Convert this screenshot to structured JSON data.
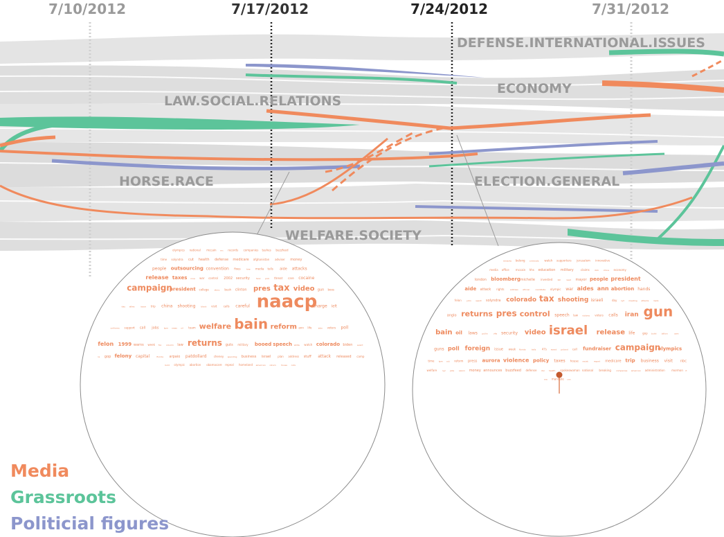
{
  "dates": [
    {
      "label": "7/10/2012",
      "color": "#9a9a9a",
      "style": "dotted-light"
    },
    {
      "label": "7/17/2012",
      "color": "#333333",
      "style": "dotted-dark"
    },
    {
      "label": "7/24/2012",
      "color": "#222222",
      "style": "dotted-dark"
    },
    {
      "label": "7/31/2012",
      "color": "#9a9a9a",
      "style": "dotted-light"
    }
  ],
  "topics": {
    "defense": "DEFENSE.INTERNATIONAL.ISSUES",
    "economy": "ECONOMY",
    "law": "LAW.SOCIAL.RELATIONS",
    "horse": "HORSE.RACE",
    "election": "ELECTION.GENERAL",
    "welfare": "WELFARE.SOCIETY"
  },
  "legend": [
    {
      "label": "Media",
      "color": "#f08a5d"
    },
    {
      "label": "Grassroots",
      "color": "#5cc49a"
    },
    {
      "label": "Politicial figures",
      "color": "#8c96cc"
    }
  ],
  "colors": {
    "media": "#f08a5d",
    "grassroots": "#5cc49a",
    "political": "#8c96cc",
    "band": "#e2e2e2"
  },
  "left_cloud": [
    {
      "t": "olympics",
      "s": 4
    },
    {
      "t": "national",
      "s": 4
    },
    {
      "t": "mccain",
      "s": 4
    },
    {
      "t": "rnc",
      "s": 3
    },
    {
      "t": "records",
      "s": 4
    },
    {
      "t": "companies",
      "s": 4
    },
    {
      "t": "tashes",
      "s": 4
    },
    {
      "t": "buzzfeed",
      "s": 4
    },
    {
      "t": "time",
      "s": 4
    },
    {
      "t": "solyndra",
      "s": 4
    },
    {
      "t": "cut",
      "s": 5
    },
    {
      "t": "health",
      "s": 5
    },
    {
      "t": "defense",
      "s": 5
    },
    {
      "t": "medicare",
      "s": 5
    },
    {
      "t": "afghanistan",
      "s": 4
    },
    {
      "t": "adviser",
      "s": 4
    },
    {
      "t": "money",
      "s": 5
    },
    {
      "t": "people",
      "s": 6
    },
    {
      "t": "outsourcing",
      "s": 7
    },
    {
      "t": "convention",
      "s": 6
    },
    {
      "t": "fixes",
      "s": 4
    },
    {
      "t": "hire",
      "s": 3
    },
    {
      "t": "media",
      "s": 4
    },
    {
      "t": "tells",
      "s": 4
    },
    {
      "t": "aide",
      "s": 5
    },
    {
      "t": "attacks",
      "s": 6
    },
    {
      "t": "release",
      "s": 8
    },
    {
      "t": "taxes",
      "s": 7
    },
    {
      "t": "rove",
      "s": 3
    },
    {
      "t": "war",
      "s": 4
    },
    {
      "t": "control",
      "s": 4
    },
    {
      "t": "2002",
      "s": 5
    },
    {
      "t": "security",
      "s": 5
    },
    {
      "t": "fanz",
      "s": 3
    },
    {
      "t": "pick",
      "s": 3
    },
    {
      "t": "threat",
      "s": 4
    },
    {
      "t": "care",
      "s": 4
    },
    {
      "t": "cocaine",
      "s": 6
    },
    {
      "t": "campaign",
      "s": 12
    },
    {
      "t": "president",
      "s": 7
    },
    {
      "t": "college",
      "s": 4
    },
    {
      "t": "story",
      "s": 3
    },
    {
      "t": "bush",
      "s": 4
    },
    {
      "t": "clinton",
      "s": 5
    },
    {
      "t": "pres",
      "s": 10
    },
    {
      "t": "tax",
      "s": 13
    },
    {
      "t": "video",
      "s": 10
    },
    {
      "t": "gun",
      "s": 5
    },
    {
      "t": "boos",
      "s": 4
    },
    {
      "t": "day",
      "s": 3
    },
    {
      "t": "allies",
      "s": 3
    },
    {
      "t": "issue",
      "s": 3
    },
    {
      "t": "trip",
      "s": 4
    },
    {
      "t": "china",
      "s": 6
    },
    {
      "t": "shooting",
      "s": 6
    },
    {
      "t": "black",
      "s": 3
    },
    {
      "t": "visit",
      "s": 4
    },
    {
      "t": "calls",
      "s": 4
    },
    {
      "t": "careful",
      "s": 6
    },
    {
      "t": "naacp",
      "s": 26
    },
    {
      "t": "charge",
      "s": 6
    },
    {
      "t": "left",
      "s": 5
    },
    {
      "t": "uniforms",
      "s": 3
    },
    {
      "t": "support",
      "s": 4
    },
    {
      "t": "call",
      "s": 5
    },
    {
      "t": "jobs",
      "s": 5
    },
    {
      "t": "tpm",
      "s": 3
    },
    {
      "t": "news",
      "s": 3
    },
    {
      "t": "oil",
      "s": 3
    },
    {
      "t": "team",
      "s": 4
    },
    {
      "t": "welfare",
      "s": 11
    },
    {
      "t": "bain",
      "s": 20
    },
    {
      "t": "reform",
      "s": 10
    },
    {
      "t": "ann",
      "s": 4
    },
    {
      "t": "life",
      "s": 4
    },
    {
      "t": "jobs",
      "s": 3
    },
    {
      "t": "voters",
      "s": 4
    },
    {
      "t": "poll",
      "s": 6
    },
    {
      "t": "felon",
      "s": 8
    },
    {
      "t": "1999",
      "s": 7
    },
    {
      "t": "warns",
      "s": 5
    },
    {
      "t": "week",
      "s": 4
    },
    {
      "t": "fox",
      "s": 3
    },
    {
      "t": "column",
      "s": 3
    },
    {
      "t": "law",
      "s": 5
    },
    {
      "t": "returns",
      "s": 12
    },
    {
      "t": "guts",
      "s": 5
    },
    {
      "t": "military",
      "s": 4
    },
    {
      "t": "booed",
      "s": 7
    },
    {
      "t": "speech",
      "s": 7
    },
    {
      "t": "white",
      "s": 3
    },
    {
      "t": "watch",
      "s": 4
    },
    {
      "t": "colorado",
      "s": 7
    },
    {
      "t": "biden",
      "s": 5
    },
    {
      "t": "event",
      "s": 3
    },
    {
      "t": "la",
      "s": 3
    },
    {
      "t": "gop",
      "s": 5
    },
    {
      "t": "felony",
      "s": 7
    },
    {
      "t": "capital",
      "s": 6
    },
    {
      "t": "florida",
      "s": 3
    },
    {
      "t": "arpaio",
      "s": 5
    },
    {
      "t": "patdollard",
      "s": 6
    },
    {
      "t": "cheney",
      "s": 4
    },
    {
      "t": "spending",
      "s": 3
    },
    {
      "t": "business",
      "s": 5
    },
    {
      "t": "israel",
      "s": 5
    },
    {
      "t": "plan",
      "s": 4
    },
    {
      "t": "address",
      "s": 4
    },
    {
      "t": "stuff",
      "s": 5
    },
    {
      "t": "attack",
      "s": 6
    },
    {
      "t": "released",
      "s": 5
    },
    {
      "t": "camp",
      "s": 4
    },
    {
      "t": "bold",
      "s": 3
    },
    {
      "t": "olympic",
      "s": 4
    },
    {
      "t": "abortion",
      "s": 4
    },
    {
      "t": "obamacare",
      "s": 4
    },
    {
      "t": "repeal",
      "s": 4
    },
    {
      "t": "homeland",
      "s": 4
    },
    {
      "t": "american",
      "s": 3
    },
    {
      "t": "return",
      "s": 3
    },
    {
      "t": "house",
      "s": 3
    },
    {
      "t": "cuts",
      "s": 3
    }
  ],
  "right_cloud": [
    {
      "t": "remarks",
      "s": 3
    },
    {
      "t": "belong",
      "s": 4
    },
    {
      "t": "criminals",
      "s": 3
    },
    {
      "t": "watch",
      "s": 4
    },
    {
      "t": "supporters",
      "s": 4
    },
    {
      "t": "jerusalem",
      "s": 4
    },
    {
      "t": "innovative",
      "s": 4
    },
    {
      "t": "media",
      "s": 4
    },
    {
      "t": "office",
      "s": 4
    },
    {
      "t": "mccain",
      "s": 4
    },
    {
      "t": "hhs",
      "s": 4
    },
    {
      "t": "education",
      "s": 5
    },
    {
      "t": "military",
      "s": 5
    },
    {
      "t": "claims",
      "s": 4
    },
    {
      "t": "dick",
      "s": 3
    },
    {
      "t": "china",
      "s": 3
    },
    {
      "t": "economy",
      "s": 4
    },
    {
      "t": "london",
      "s": 5
    },
    {
      "t": "bloomberg",
      "s": 7
    },
    {
      "t": "michelle",
      "s": 5
    },
    {
      "t": "invested",
      "s": 4
    },
    {
      "t": "bill",
      "s": 3
    },
    {
      "t": "lead",
      "s": 3
    },
    {
      "t": "mayor",
      "s": 5
    },
    {
      "t": "people",
      "s": 7
    },
    {
      "t": "president",
      "s": 8
    },
    {
      "t": "aide",
      "s": 7
    },
    {
      "t": "attack",
      "s": 5
    },
    {
      "t": "rights",
      "s": 4
    },
    {
      "t": "address",
      "s": 3
    },
    {
      "t": "african",
      "s": 3
    },
    {
      "t": "candidate",
      "s": 3
    },
    {
      "t": "olympic",
      "s": 4
    },
    {
      "t": "war",
      "s": 6
    },
    {
      "t": "aides",
      "s": 8
    },
    {
      "t": "ann",
      "s": 8
    },
    {
      "t": "abortion",
      "s": 7
    },
    {
      "t": "hands",
      "s": 6
    },
    {
      "t": "felon",
      "s": 4
    },
    {
      "t": "john",
      "s": 3
    },
    {
      "t": "spent",
      "s": 3
    },
    {
      "t": "solyndra",
      "s": 5
    },
    {
      "t": "colorado",
      "s": 9
    },
    {
      "t": "tax",
      "s": 12
    },
    {
      "t": "shooting",
      "s": 9
    },
    {
      "t": "israeli",
      "s": 6
    },
    {
      "t": "day",
      "s": 4
    },
    {
      "t": "nyt",
      "s": 3
    },
    {
      "t": "meeting",
      "s": 3
    },
    {
      "t": "attacks",
      "s": 3
    },
    {
      "t": "bails",
      "s": 3
    },
    {
      "t": "anglo",
      "s": 5
    },
    {
      "t": "returns",
      "s": 11
    },
    {
      "t": "pres",
      "s": 12
    },
    {
      "t": "control",
      "s": 11
    },
    {
      "t": "speech",
      "s": 6
    },
    {
      "t": "law",
      "s": 4
    },
    {
      "t": "victims",
      "s": 3
    },
    {
      "t": "voters",
      "s": 4
    },
    {
      "t": "calls",
      "s": 6
    },
    {
      "t": "iran",
      "s": 9
    },
    {
      "t": "gun",
      "s": 20
    },
    {
      "t": "bain",
      "s": 10
    },
    {
      "t": "oil",
      "s": 7
    },
    {
      "t": "laws",
      "s": 6
    },
    {
      "t": "pullin",
      "s": 3
    },
    {
      "t": "vfw",
      "s": 3
    },
    {
      "t": "security",
      "s": 6
    },
    {
      "t": "video",
      "s": 10
    },
    {
      "t": "israel",
      "s": 18
    },
    {
      "t": "release",
      "s": 10
    },
    {
      "t": "life",
      "s": 6
    },
    {
      "t": "gop",
      "s": 4
    },
    {
      "t": "build",
      "s": 3
    },
    {
      "t": "billion",
      "s": 3
    },
    {
      "t": "care",
      "s": 3
    },
    {
      "t": "guns",
      "s": 6
    },
    {
      "t": "poll",
      "s": 8
    },
    {
      "t": "foreign",
      "s": 9
    },
    {
      "t": "issue",
      "s": 5
    },
    {
      "t": "week",
      "s": 4
    },
    {
      "t": "florida",
      "s": 3
    },
    {
      "t": "tells",
      "s": 3
    },
    {
      "t": "47s",
      "s": 4
    },
    {
      "t": "event",
      "s": 3
    },
    {
      "t": "poland",
      "s": 3
    },
    {
      "t": "call",
      "s": 4
    },
    {
      "t": "fundraiser",
      "s": 7
    },
    {
      "t": "campaign",
      "s": 12
    },
    {
      "t": "olympics",
      "s": 7
    },
    {
      "t": "time",
      "s": 4
    },
    {
      "t": "tpm",
      "s": 3
    },
    {
      "t": "cut",
      "s": 3
    },
    {
      "t": "reform",
      "s": 4
    },
    {
      "t": "press",
      "s": 5
    },
    {
      "t": "aurora",
      "s": 7
    },
    {
      "t": "violence",
      "s": 8
    },
    {
      "t": "policy",
      "s": 7
    },
    {
      "t": "taxes",
      "s": 6
    },
    {
      "t": "house",
      "s": 4
    },
    {
      "t": "racist",
      "s": 3
    },
    {
      "t": "report",
      "s": 3
    },
    {
      "t": "medicare",
      "s": 5
    },
    {
      "t": "trip",
      "s": 7
    },
    {
      "t": "business",
      "s": 6
    },
    {
      "t": "visit",
      "s": 6
    },
    {
      "t": "nbc",
      "s": 5
    },
    {
      "t": "welfare",
      "s": 4
    },
    {
      "t": "nyc",
      "s": 3
    },
    {
      "t": "jobs",
      "s": 3
    },
    {
      "t": "saxon",
      "s": 3
    },
    {
      "t": "money",
      "s": 5
    },
    {
      "t": "announces",
      "s": 5
    },
    {
      "t": "buzzfeed",
      "s": 5
    },
    {
      "t": "defense",
      "s": 4
    },
    {
      "t": "dnc",
      "s": 3
    },
    {
      "t": "health",
      "s": 3
    },
    {
      "t": "spokeswoman",
      "s": 4
    },
    {
      "t": "national",
      "s": 4
    },
    {
      "t": "breaking",
      "s": 4
    },
    {
      "t": "companies",
      "s": 3
    },
    {
      "t": "american",
      "s": 3
    },
    {
      "t": "administration",
      "s": 4
    },
    {
      "t": "mormon",
      "s": 4
    },
    {
      "t": "rt",
      "s": 3
    },
    {
      "t": "nra",
      "s": 3
    },
    {
      "t": "mandate",
      "s": 4
    },
    {
      "t": "cnn",
      "s": 3
    }
  ]
}
